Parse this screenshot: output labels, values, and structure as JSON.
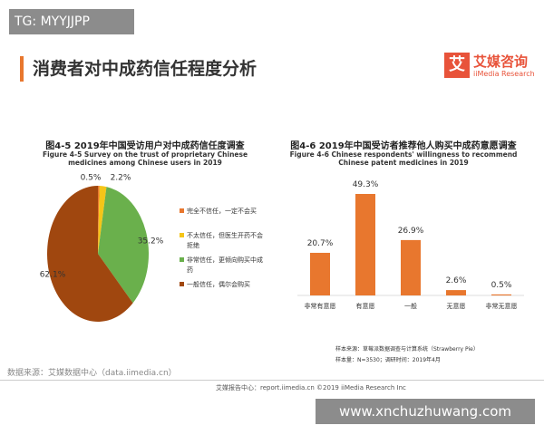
{
  "tag": "TG: MYYJJPP",
  "header": {
    "title": "消费者对中成药信任程度分析",
    "logo_mark": "艾",
    "logo_name": "艾媒咨询",
    "logo_sub": "iiMedia Research"
  },
  "chart_data": [
    {
      "type": "pie",
      "title": "图4-5 2019年中国受访用户对中成药信任度调查",
      "subtitle": "Figure 4-5 Survey on the trust of proprietary Chinese medicines among Chinese users in 2019",
      "categories": [
        "完全不信任，一定不会买",
        "不太信任，但医生开药不会拒绝",
        "非常信任，更倾向购买中成药",
        "一般信任，偶尔会购买"
      ],
      "values": [
        0.5,
        2.2,
        35.2,
        62.1
      ],
      "value_labels": [
        "0.5%",
        "2.2%",
        "35.2%",
        "62.1%"
      ],
      "colors": [
        "#e8772e",
        "#f5c518",
        "#6ab04c",
        "#a0470f"
      ]
    },
    {
      "type": "bar",
      "title": "图4-6 2019年中国受访者推荐他人购买中成药意愿调查",
      "subtitle": "Figure 4-6 Chinese respondents' willingness to recommend Chinese patent medicines in 2019",
      "categories": [
        "非常有意愿",
        "有意愿",
        "一般",
        "无意愿",
        "非常无意愿"
      ],
      "values": [
        20.7,
        49.3,
        26.9,
        2.6,
        0.5
      ],
      "value_labels": [
        "20.7%",
        "49.3%",
        "26.9%",
        "2.6%",
        "0.5%"
      ],
      "color": "#e8772e"
    }
  ],
  "notes": {
    "sample_source": "样本来源：草莓派数据调查与计算系统（Strawberry Pie）",
    "sample_size": "样本量：N=3530；调研时间：2019年4月",
    "data_source": "数据来源：艾媒数据中心（data.iimedia.cn）",
    "footer": "艾媒报告中心：report.iimedia.cn  ©2019 iiMedia Research Inc"
  },
  "watermark": "www.xnchuzhuwang.com"
}
